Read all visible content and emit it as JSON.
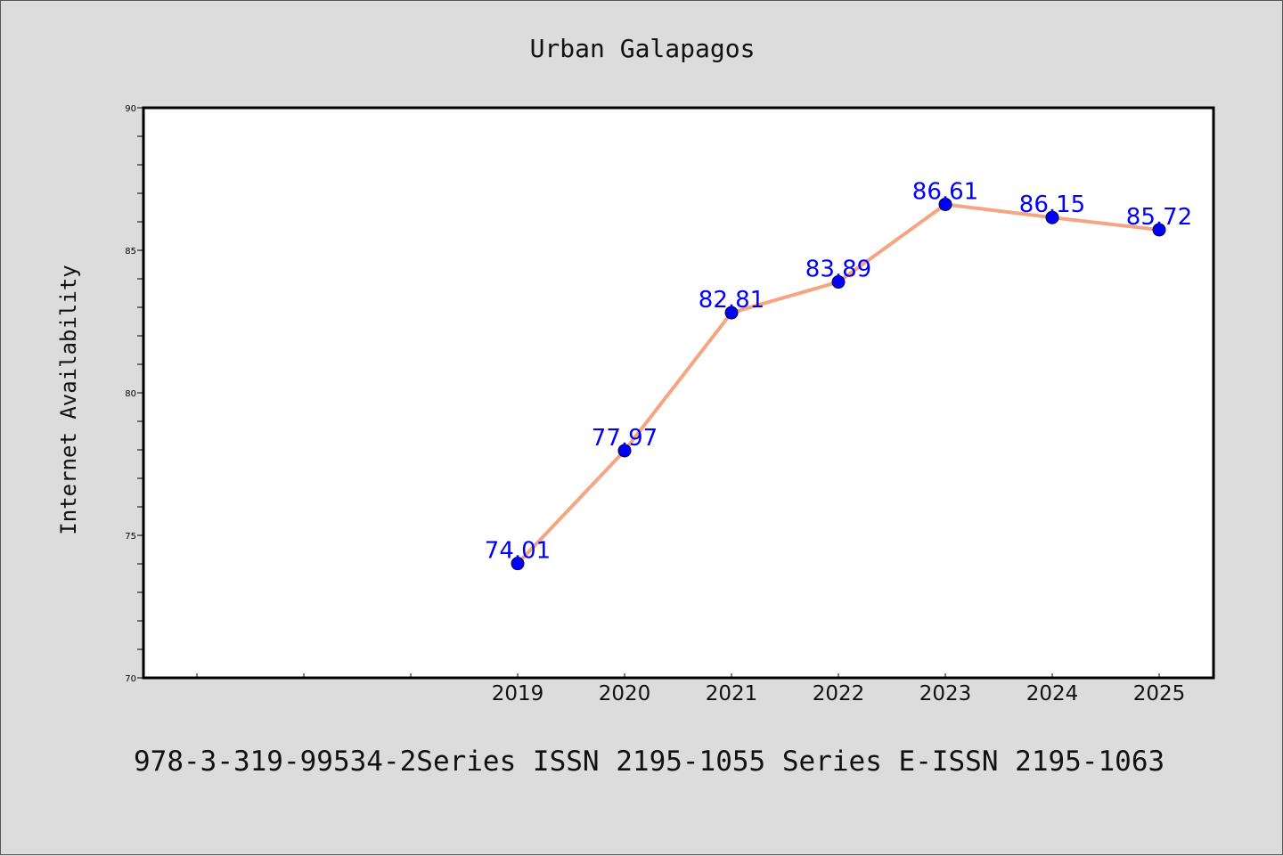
{
  "chart_data": {
    "type": "line",
    "title": "Urban Galapagos",
    "xlabel": "",
    "ylabel": "Internet Availability",
    "x": [
      "2019",
      "2020",
      "2021",
      "2022",
      "2023",
      "2024",
      "2025"
    ],
    "series": [
      {
        "values": [
          74.01,
          77.97,
          82.81,
          83.89,
          86.61,
          86.15,
          85.72
        ],
        "data_labels": [
          "74.01",
          "77.97",
          "82.81",
          "83.89",
          "86.61",
          "86.15",
          "85.72"
        ]
      }
    ],
    "ylim": [
      70,
      90
    ],
    "yticks": [
      "70",
      "75",
      "80",
      "85",
      "90"
    ],
    "grid": false,
    "legend": "none",
    "colors": {
      "line": "#f4a582",
      "marker": "#0000ff",
      "labels": "#0000ff",
      "background": "#dcdcdc",
      "plot_background": "#ffffff"
    }
  },
  "footer": {
    "text": "978-3-319-99534-2Series ISSN 2195-1055 Series E-ISSN 2195-1063"
  }
}
